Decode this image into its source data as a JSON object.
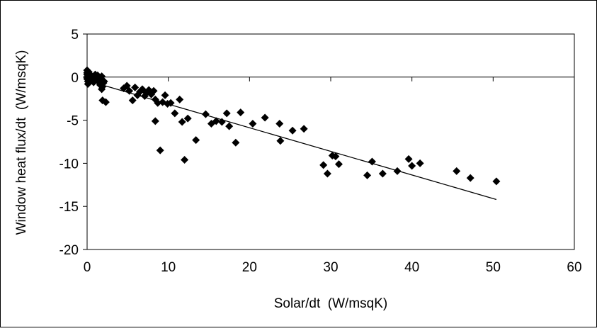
{
  "chart_data": {
    "type": "scatter",
    "title": "",
    "xlabel": "Solar/dt  (W/msqK)",
    "ylabel": "Window heat flux/dt  (W/msqK)",
    "xlim": [
      0,
      60
    ],
    "ylim": [
      -20,
      5
    ],
    "xticks": [
      0,
      10,
      20,
      30,
      40,
      50,
      60
    ],
    "yticks": [
      5,
      0,
      -5,
      -10,
      -15,
      -20
    ],
    "grid": false,
    "legend": "none",
    "marker": "diamond",
    "marker_color": "#000000",
    "series": [
      {
        "points": [
          [
            0,
            0.8
          ],
          [
            0,
            0.5
          ],
          [
            0,
            0.3
          ],
          [
            0,
            0.0
          ],
          [
            0,
            -0.2
          ],
          [
            0.1,
            -0.5
          ],
          [
            0.1,
            -0.8
          ],
          [
            0.2,
            0.6
          ],
          [
            0.3,
            0.2
          ],
          [
            0.4,
            -0.1
          ],
          [
            0.5,
            -0.3
          ],
          [
            0.6,
            0.1
          ],
          [
            0.8,
            -0.6
          ],
          [
            1.0,
            0.3
          ],
          [
            1.1,
            0.0
          ],
          [
            1.2,
            -0.3
          ],
          [
            1.3,
            0.2
          ],
          [
            1.4,
            -0.5
          ],
          [
            1.5,
            -0.2
          ],
          [
            1.6,
            -0.9
          ],
          [
            1.7,
            -0.4
          ],
          [
            1.8,
            0.1
          ],
          [
            1.8,
            -1.4
          ],
          [
            1.9,
            -1.1
          ],
          [
            2.0,
            -0.7
          ],
          [
            2.1,
            -0.5
          ],
          [
            1.9,
            -2.7
          ],
          [
            2.3,
            -2.9
          ],
          [
            4.5,
            -1.3
          ],
          [
            4.9,
            -1.0
          ],
          [
            5.2,
            -1.6
          ],
          [
            5.6,
            -2.7
          ],
          [
            5.9,
            -1.2
          ],
          [
            6.2,
            -2.1
          ],
          [
            6.5,
            -1.7
          ],
          [
            6.8,
            -1.4
          ],
          [
            7.1,
            -2.2
          ],
          [
            7.3,
            -1.8
          ],
          [
            7.6,
            -1.5
          ],
          [
            7.9,
            -2.0
          ],
          [
            8.2,
            -1.6
          ],
          [
            8.4,
            -2.6
          ],
          [
            8.7,
            -3.0
          ],
          [
            9.3,
            -2.9
          ],
          [
            9.6,
            -2.1
          ],
          [
            9.9,
            -3.1
          ],
          [
            10.3,
            -3.0
          ],
          [
            10.8,
            -4.2
          ],
          [
            11.4,
            -2.6
          ],
          [
            11.7,
            -5.2
          ],
          [
            12.4,
            -4.8
          ],
          [
            8.4,
            -5.1
          ],
          [
            9.0,
            -8.5
          ],
          [
            12.0,
            -9.6
          ],
          [
            13.4,
            -7.3
          ],
          [
            14.6,
            -4.3
          ],
          [
            15.3,
            -5.4
          ],
          [
            15.9,
            -5.1
          ],
          [
            16.6,
            -5.2
          ],
          [
            17.2,
            -4.2
          ],
          [
            17.5,
            -5.7
          ],
          [
            18.3,
            -7.6
          ],
          [
            18.9,
            -4.1
          ],
          [
            20.4,
            -5.4
          ],
          [
            21.9,
            -4.7
          ],
          [
            23.7,
            -5.4
          ],
          [
            23.8,
            -7.4
          ],
          [
            25.3,
            -6.2
          ],
          [
            26.7,
            -6.0
          ],
          [
            29.1,
            -10.2
          ],
          [
            29.6,
            -11.2
          ],
          [
            30.2,
            -9.1
          ],
          [
            30.6,
            -9.2
          ],
          [
            31.0,
            -10.1
          ],
          [
            34.5,
            -11.4
          ],
          [
            35.1,
            -9.8
          ],
          [
            36.4,
            -11.2
          ],
          [
            38.2,
            -10.9
          ],
          [
            39.6,
            -9.5
          ],
          [
            40.0,
            -10.3
          ],
          [
            41.0,
            -10.0
          ],
          [
            45.5,
            -10.9
          ],
          [
            47.2,
            -11.7
          ],
          [
            50.4,
            -12.1
          ]
        ]
      }
    ],
    "trendline": {
      "x": [
        0,
        50.4
      ],
      "y": [
        -0.4,
        -14.2
      ]
    }
  }
}
